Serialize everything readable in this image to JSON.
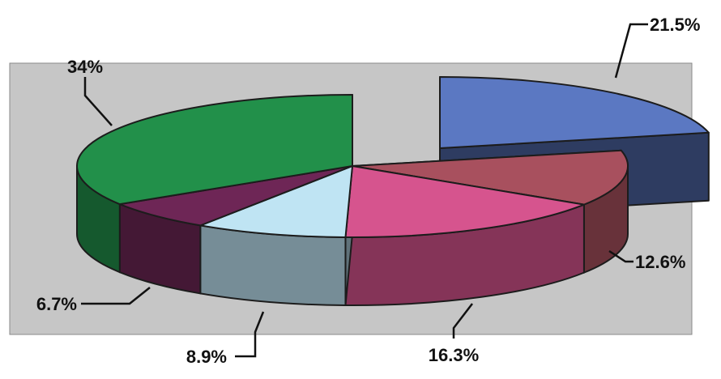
{
  "chart_data": {
    "type": "pie",
    "style": "3d-exploded",
    "title": "",
    "legend": "none",
    "slices": [
      {
        "label": "21.5%",
        "value": 21.5,
        "color": "#5b78c2",
        "exploded": true
      },
      {
        "label": "12.6%",
        "value": 12.6,
        "color": "#a8505e",
        "exploded": false
      },
      {
        "label": "16.3%",
        "value": 16.3,
        "color": "#d6548e",
        "exploded": false
      },
      {
        "label": "8.9%",
        "value": 8.9,
        "color": "#bfe4f3",
        "exploded": false
      },
      {
        "label": "6.7%",
        "value": 6.7,
        "color": "#6e2656",
        "exploded": false
      },
      {
        "label": "34%",
        "value": 34,
        "color": "#22904a",
        "exploded": false
      }
    ]
  }
}
